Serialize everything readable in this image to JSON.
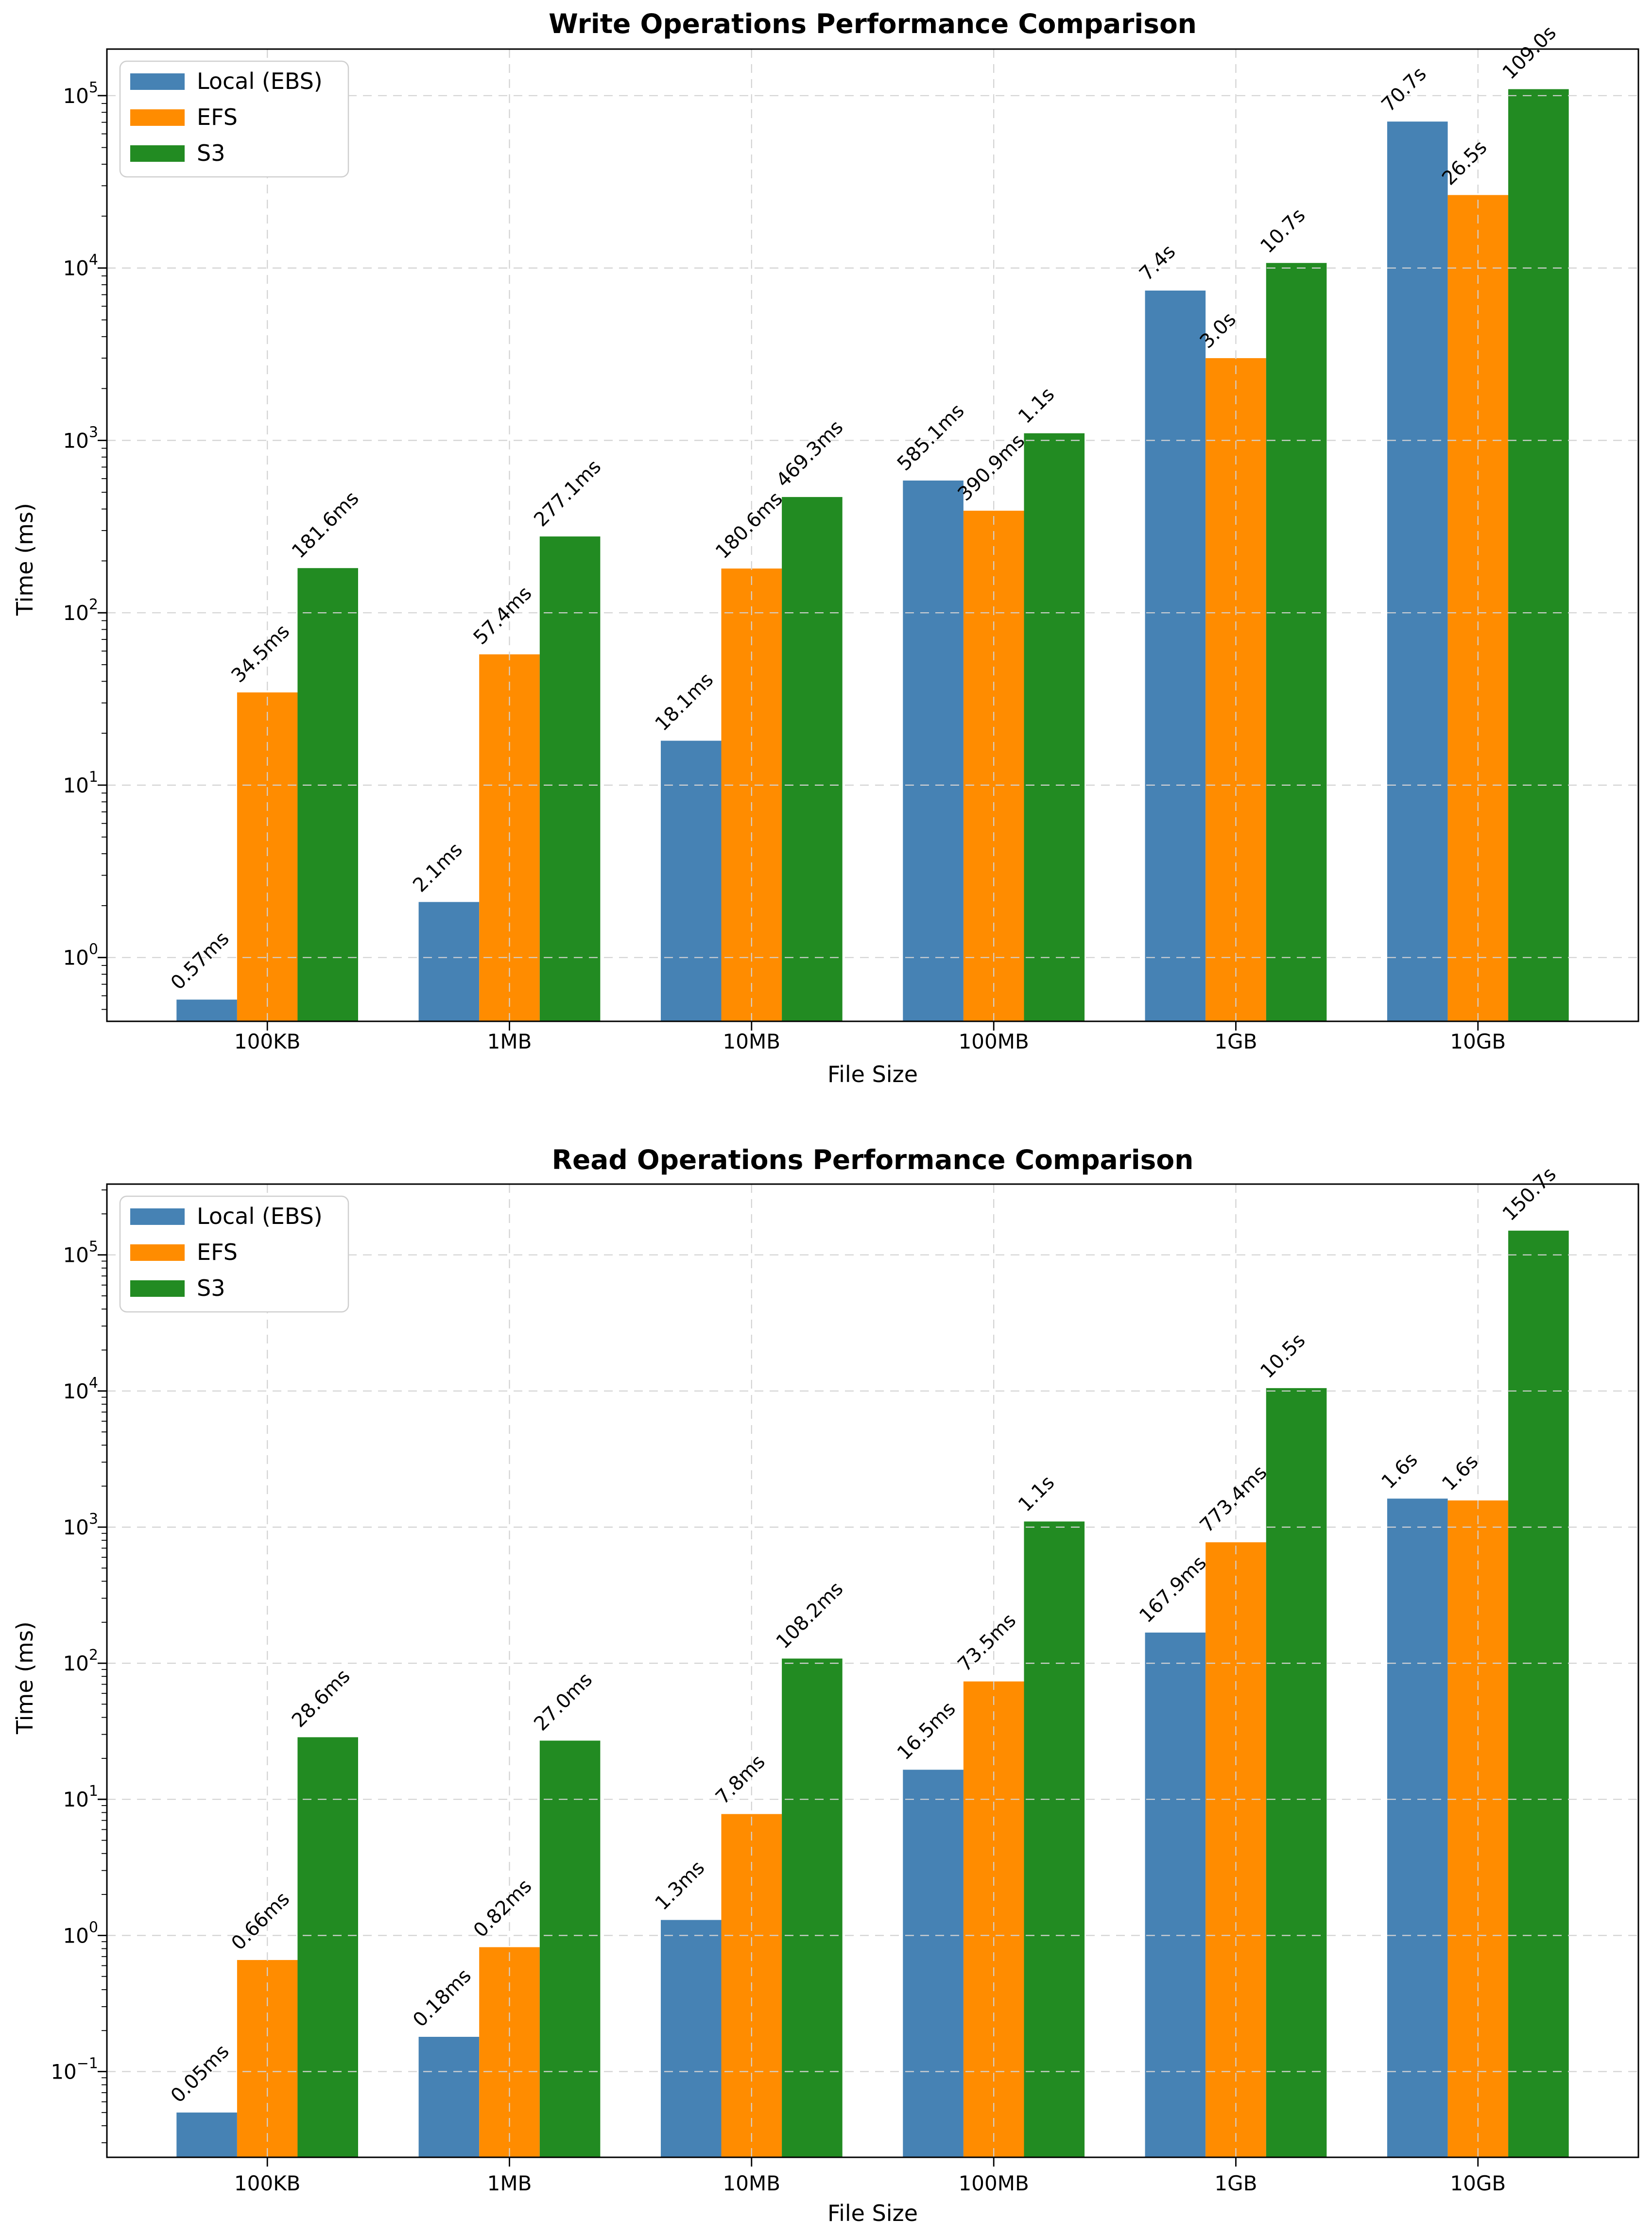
{
  "figure": {
    "background": "#ffffff",
    "text_color": "#000000",
    "grid_color": "#d2d2d2",
    "spine_color": "#000000",
    "legend_border_color": "#cfcfcf"
  },
  "chart_data": [
    {
      "type": "bar",
      "title": "Write Operations Performance Comparison",
      "xlabel": "File Size",
      "ylabel": "Time (ms)",
      "yscale": "log",
      "ylim_log10": [
        -0.37,
        5.27
      ],
      "ytick_exponents": [
        0,
        1,
        2,
        3,
        4,
        5
      ],
      "grid": "dashed",
      "legend_position": "upper left",
      "categories": [
        "100KB",
        "1MB",
        "10MB",
        "100MB",
        "1GB",
        "10GB"
      ],
      "series": [
        {
          "name": "Local (EBS)",
          "color": "#4682B4",
          "values_ms": [
            0.57,
            2.1,
            18.1,
            585.1,
            7400,
            70700
          ],
          "labels": [
            "0.57ms",
            "2.1ms",
            "18.1ms",
            "585.1ms",
            "7.4s",
            "70.7s"
          ]
        },
        {
          "name": "EFS",
          "color": "#FF8C00",
          "values_ms": [
            34.5,
            57.4,
            180.6,
            390.9,
            3000,
            26500
          ],
          "labels": [
            "34.5ms",
            "57.4ms",
            "180.6ms",
            "390.9ms",
            "3.0s",
            "26.5s"
          ]
        },
        {
          "name": "S3",
          "color": "#228B22",
          "values_ms": [
            181.6,
            277.1,
            469.3,
            1100,
            10700,
            109000
          ],
          "labels": [
            "181.6ms",
            "277.1ms",
            "469.3ms",
            "1.1s",
            "10.7s",
            "109.0s"
          ]
        }
      ]
    },
    {
      "type": "bar",
      "title": "Read Operations Performance Comparison",
      "xlabel": "File Size",
      "ylabel": "Time (ms)",
      "yscale": "log",
      "ylim_log10": [
        -1.63,
        5.52
      ],
      "ytick_exponents": [
        -1,
        0,
        1,
        2,
        3,
        4,
        5
      ],
      "grid": "dashed",
      "legend_position": "upper left",
      "categories": [
        "100KB",
        "1MB",
        "10MB",
        "100MB",
        "1GB",
        "10GB"
      ],
      "series": [
        {
          "name": "Local (EBS)",
          "color": "#4682B4",
          "values_ms": [
            0.05,
            0.18,
            1.3,
            16.5,
            167.9,
            1620
          ],
          "labels": [
            "0.05ms",
            "0.18ms",
            "1.3ms",
            "16.5ms",
            "167.9ms",
            "1.6s"
          ]
        },
        {
          "name": "EFS",
          "color": "#FF8C00",
          "values_ms": [
            0.66,
            0.82,
            7.8,
            73.5,
            773.4,
            1570
          ],
          "labels": [
            "0.66ms",
            "0.82ms",
            "7.8ms",
            "73.5ms",
            "773.4ms",
            "1.6s"
          ]
        },
        {
          "name": "S3",
          "color": "#228B22",
          "values_ms": [
            28.6,
            27.0,
            108.2,
            1100,
            10500,
            150700
          ],
          "labels": [
            "28.6ms",
            "27.0ms",
            "108.2ms",
            "1.1s",
            "10.5s",
            "150.7s"
          ]
        }
      ]
    }
  ]
}
